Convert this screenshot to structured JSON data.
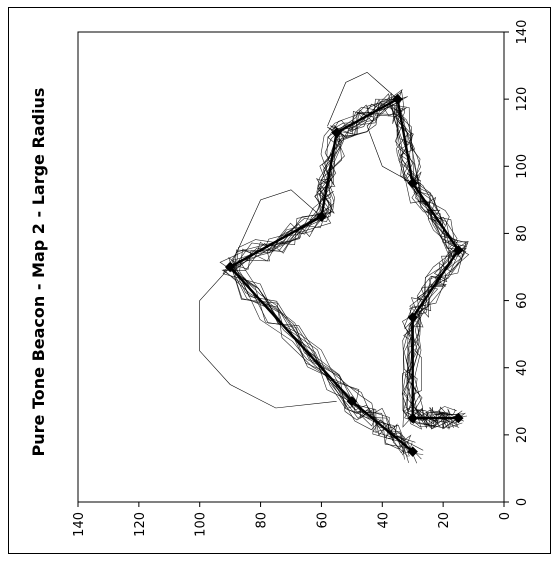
{
  "chart_data": {
    "type": "line",
    "title": "Pure Tone Beacon - Map 2 - Large Radius",
    "orientation": "rotated 90 degrees clockwise (title reads bottom-to-top on the left side)",
    "x_axis": {
      "ticks": [
        140,
        120,
        100,
        80,
        60,
        40,
        20,
        0
      ],
      "range": [
        140,
        0
      ],
      "position": "bottom",
      "tick_label_rotation": -90
    },
    "y_axis": {
      "ticks": [
        0,
        20,
        40,
        60,
        80,
        100,
        120,
        140
      ],
      "range": [
        0,
        140
      ],
      "position": "right",
      "tick_label_rotation": -90
    },
    "grid": false,
    "series": [
      {
        "role": "reference path with beacon markers",
        "marker": "diamond",
        "points": [
          [
            30,
            15
          ],
          [
            50,
            30
          ],
          [
            90,
            70
          ],
          [
            60,
            85
          ],
          [
            55,
            110
          ],
          [
            35,
            120
          ],
          [
            30,
            95
          ],
          [
            15,
            75
          ],
          [
            30,
            55
          ],
          [
            30,
            25
          ],
          [
            15,
            25
          ]
        ]
      },
      {
        "role": "recorded trajectories (thin traces)",
        "count_approx": 15
      }
    ]
  }
}
